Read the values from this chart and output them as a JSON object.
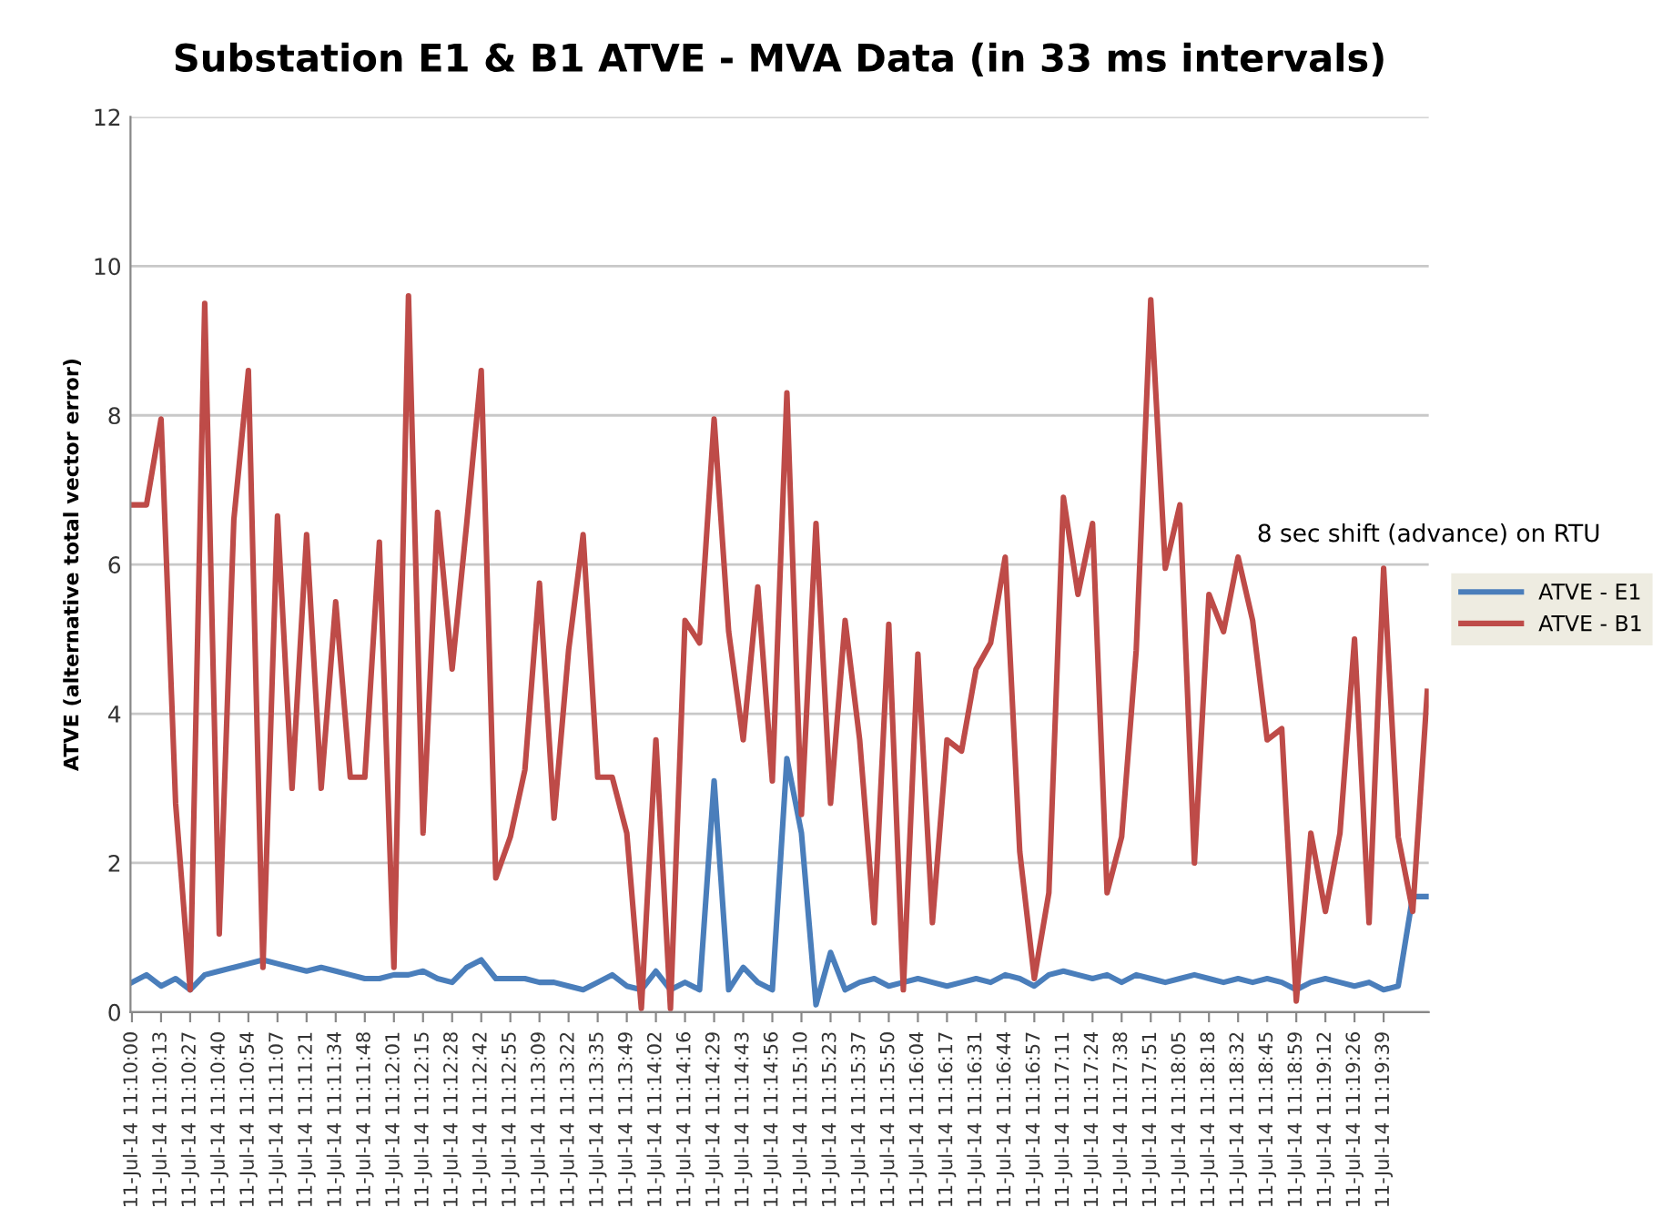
{
  "chart_data": {
    "type": "line",
    "title": "Substation E1 & B1 ATVE - MVA Data (in 33 ms intervals)",
    "ylabel": "ATVE (alternative total vector error)",
    "categories": [
      "11-Jul-14 11:10:00",
      null,
      "11-Jul-14 11:10:13",
      null,
      "11-Jul-14 11:10:27",
      null,
      "11-Jul-14 11:10:40",
      null,
      "11-Jul-14 11:10:54",
      null,
      "11-Jul-14 11:11:07",
      null,
      "11-Jul-14 11:11:21",
      null,
      "11-Jul-14 11:11:34",
      null,
      "11-Jul-14 11:11:48",
      null,
      "11-Jul-14 11:12:01",
      null,
      "11-Jul-14 11:12:15",
      null,
      "11-Jul-14 11:12:28",
      null,
      "11-Jul-14 11:12:42",
      null,
      "11-Jul-14 11:12:55",
      null,
      "11-Jul-14 11:13:09",
      null,
      "11-Jul-14 11:13:22",
      null,
      "11-Jul-14 11:13:35",
      null,
      "11-Jul-14 11:13:49",
      null,
      "11-Jul-14 11:14:02",
      null,
      "11-Jul-14 11:14:16",
      null,
      "11-Jul-14 11:14:29",
      null,
      "11-Jul-14 11:14:43",
      null,
      "11-Jul-14 11:14:56",
      null,
      "11-Jul-14 11:15:10",
      null,
      "11-Jul-14 11:15:23",
      null,
      "11-Jul-14 11:15:37",
      null,
      "11-Jul-14 11:15:50",
      null,
      "11-Jul-14 11:16:04",
      null,
      "11-Jul-14 11:16:17",
      null,
      "11-Jul-14 11:16:31",
      null,
      "11-Jul-14 11:16:44",
      null,
      "11-Jul-14 11:16:57",
      null,
      "11-Jul-14 11:17:11",
      null,
      "11-Jul-14 11:17:24",
      null,
      "11-Jul-14 11:17:38",
      null,
      "11-Jul-14 11:17:51",
      null,
      "11-Jul-14 11:18:05",
      null,
      "11-Jul-14 11:18:18",
      null,
      "11-Jul-14 11:18:32",
      null,
      "11-Jul-14 11:18:45",
      null,
      "11-Jul-14 11:18:59",
      null,
      "11-Jul-14 11:19:12",
      null,
      "11-Jul-14 11:19:26",
      null,
      "11-Jul-14 11:19:39",
      null,
      null,
      null
    ],
    "series": [
      {
        "name": "ATVE - E1",
        "color": "#4a7ebb",
        "values": [
          0.4,
          0.5,
          0.35,
          0.45,
          0.3,
          0.5,
          0.55,
          0.6,
          0.65,
          0.7,
          0.65,
          0.6,
          0.55,
          0.6,
          0.55,
          0.5,
          0.45,
          0.45,
          0.5,
          0.5,
          0.55,
          0.45,
          0.4,
          0.6,
          0.7,
          0.45,
          0.45,
          0.45,
          0.4,
          0.4,
          0.35,
          0.3,
          0.4,
          0.5,
          0.35,
          0.3,
          0.55,
          0.3,
          0.4,
          0.3,
          3.1,
          0.3,
          0.6,
          0.4,
          0.3,
          3.4,
          2.4,
          0.1,
          0.8,
          0.3,
          0.4,
          0.45,
          0.35,
          0.4,
          0.45,
          0.4,
          0.35,
          0.4,
          0.45,
          0.4,
          0.5,
          0.45,
          0.35,
          0.5,
          0.55,
          0.5,
          0.45,
          0.5,
          0.4,
          0.5,
          0.45,
          0.4,
          0.45,
          0.5,
          0.45,
          0.4,
          0.45,
          0.4,
          0.45,
          0.4,
          0.3,
          0.4,
          0.45,
          0.4,
          0.35,
          0.4,
          0.3,
          0.35,
          1.55,
          1.55
        ]
      },
      {
        "name": "ATVE - B1",
        "color": "#be4b48",
        "values": [
          6.8,
          6.8,
          7.95,
          2.8,
          0.3,
          9.5,
          1.05,
          6.6,
          8.6,
          0.6,
          6.65,
          3.0,
          6.4,
          3.0,
          5.5,
          3.15,
          3.15,
          6.3,
          0.6,
          9.6,
          2.4,
          6.7,
          4.6,
          6.55,
          8.6,
          1.8,
          2.35,
          3.25,
          5.75,
          2.6,
          4.85,
          6.4,
          3.15,
          3.15,
          2.4,
          0.05,
          3.65,
          0.05,
          5.25,
          4.95,
          7.95,
          5.1,
          3.65,
          5.7,
          3.1,
          8.3,
          2.65,
          6.55,
          2.8,
          5.25,
          3.65,
          1.2,
          5.2,
          0.3,
          4.8,
          1.2,
          3.65,
          3.5,
          4.6,
          4.95,
          6.1,
          2.15,
          0.45,
          1.6,
          6.9,
          5.6,
          6.55,
          1.6,
          2.35,
          4.85,
          9.55,
          5.95,
          6.8,
          2.0,
          5.6,
          5.1,
          6.1,
          5.25,
          3.65,
          3.8,
          0.15,
          2.4,
          1.35,
          2.4,
          5.0,
          1.2,
          5.95,
          2.35,
          1.35,
          4.3
        ]
      }
    ],
    "ylim": [
      0,
      12
    ],
    "yticks": [
      0,
      2,
      4,
      6,
      8,
      10,
      12
    ],
    "grid": "y",
    "legend": "right",
    "marker": "none",
    "line_style": "solid",
    "annotations": [
      "8 sec shift (advance) on RTU"
    ]
  }
}
